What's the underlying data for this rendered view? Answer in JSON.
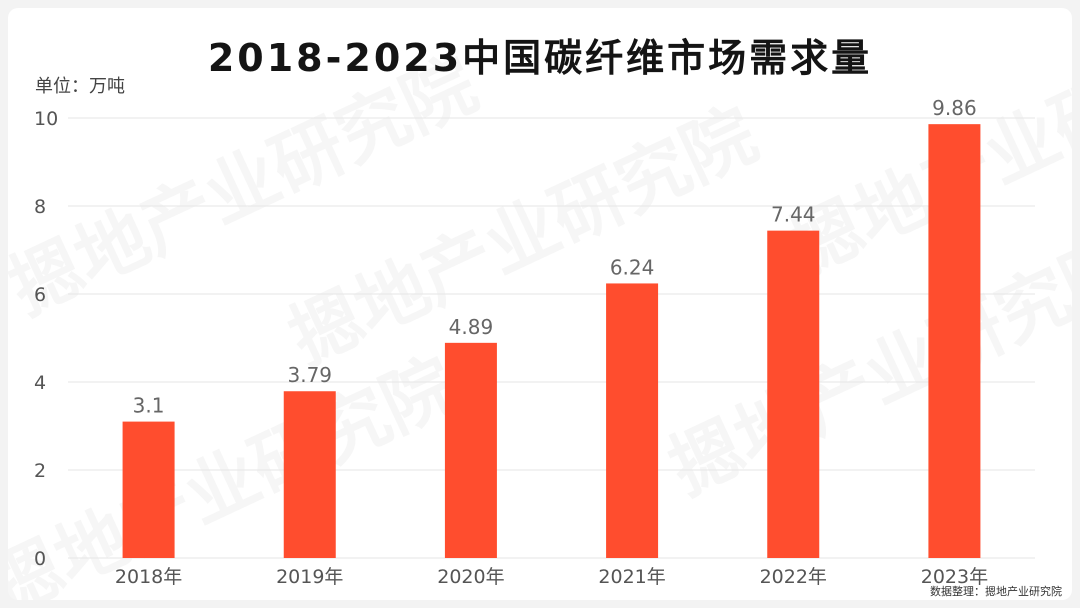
{
  "title": "2018-2023中国碳纤维市场需求量",
  "unit_label": "单位：万吨",
  "source_note": "数据整理：摁地产业研究院",
  "watermark": "摁地产业研究院",
  "colors": {
    "bar": "#ff4d2e",
    "grid": "#e6e6e6",
    "axis_text": "#555555",
    "value_text": "#666666"
  },
  "chart_data": {
    "type": "bar",
    "categories": [
      "2018年",
      "2019年",
      "2020年",
      "2021年",
      "2022年",
      "2023年"
    ],
    "values": [
      3.1,
      3.79,
      4.89,
      6.24,
      7.44,
      9.86
    ],
    "value_labels": [
      "3.1",
      "3.79",
      "4.89",
      "6.24",
      "7.44",
      "9.86"
    ],
    "title": "2018-2023中国碳纤维市场需求量",
    "xlabel": "",
    "ylabel": "单位：万吨",
    "ylim": [
      0,
      10
    ],
    "yticks": [
      0,
      2,
      4,
      6,
      8,
      10
    ],
    "grid": true,
    "legend": "none"
  }
}
